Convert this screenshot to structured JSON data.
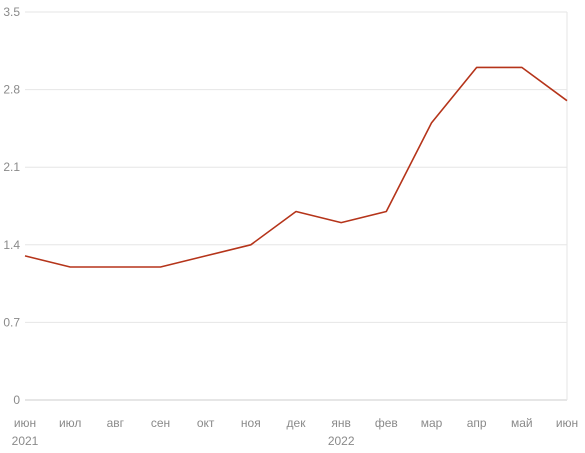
{
  "chart_data": {
    "type": "line",
    "title": "",
    "xlabel": "",
    "ylabel": "",
    "x": [
      "июн",
      "июл",
      "авг",
      "сен",
      "окт",
      "ноя",
      "дек",
      "янв",
      "фев",
      "мар",
      "апр",
      "май",
      "июн"
    ],
    "year_labels": [
      {
        "year": "2021",
        "month_index": 0
      },
      {
        "year": "2022",
        "month_index": 7
      }
    ],
    "series": [
      {
        "values": [
          1.3,
          1.2,
          1.2,
          1.2,
          1.3,
          1.4,
          1.7,
          1.6,
          1.7,
          2.5,
          3.0,
          3.0,
          2.7
        ],
        "color": "#b5341a"
      }
    ],
    "ylim": [
      0,
      3.5
    ],
    "yticks": [
      0,
      0.7,
      1.4,
      2.1,
      2.8,
      3.5
    ],
    "ytick_labels": [
      "0",
      "0.7",
      "1.4",
      "2.1",
      "2.8",
      "3.5"
    ],
    "grid": true,
    "legend": "none",
    "colors": {
      "grid": "#e6e6e6",
      "axis": "#cccccc",
      "label": "#8a8a8a"
    }
  }
}
